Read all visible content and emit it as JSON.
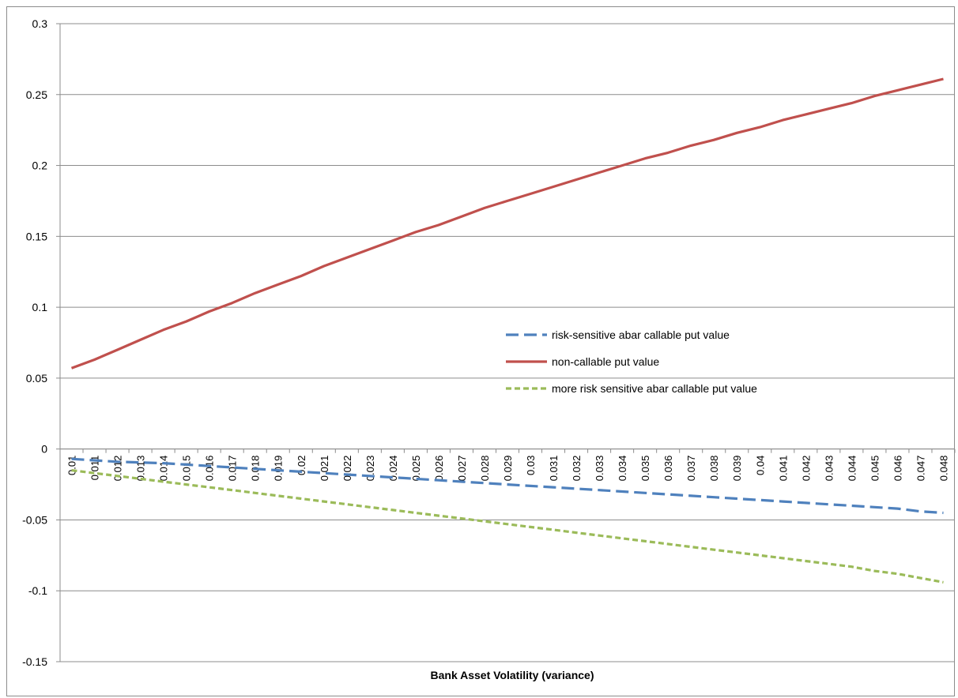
{
  "chart_data": {
    "type": "line",
    "title": "",
    "xlabel": "Bank Asset Volatility (variance)",
    "ylabel": "",
    "ylim": [
      -0.15,
      0.3
    ],
    "yticks": [
      0.3,
      0.25,
      0.2,
      0.15,
      0.1,
      0.05,
      0,
      -0.05,
      -0.1,
      -0.15
    ],
    "ytick_labels": [
      "0.3",
      "0.25",
      "0.2",
      "0.15",
      "0.1",
      "0.05",
      "0",
      "-0.05",
      "-0.1",
      "-0.15"
    ],
    "grid": "horizontal",
    "legend_position": "center-right",
    "categories": [
      "0.01",
      "0.011",
      "0.012",
      "0.013",
      "0.014",
      "0.015",
      "0.016",
      "0.017",
      "0.018",
      "0.019",
      "0.02",
      "0.021",
      "0.022",
      "0.023",
      "0.024",
      "0.025",
      "0.026",
      "0.027",
      "0.028",
      "0.029",
      "0.03",
      "0.031",
      "0.032",
      "0.033",
      "0.034",
      "0.035",
      "0.036",
      "0.037",
      "0.038",
      "0.039",
      "0.04",
      "0.041",
      "0.042",
      "0.043",
      "0.044",
      "0.045",
      "0.046",
      "0.047",
      "0.048"
    ],
    "series": [
      {
        "name": "risk-sensitive abar callable put value",
        "color": "#4f81bd",
        "dash": "long-dash",
        "values": [
          -0.007,
          -0.008,
          -0.009,
          -0.0095,
          -0.01,
          -0.011,
          -0.012,
          -0.013,
          -0.014,
          -0.015,
          -0.016,
          -0.017,
          -0.018,
          -0.019,
          -0.02,
          -0.021,
          -0.022,
          -0.023,
          -0.024,
          -0.025,
          -0.026,
          -0.027,
          -0.028,
          -0.029,
          -0.03,
          -0.031,
          -0.032,
          -0.033,
          -0.034,
          -0.035,
          -0.036,
          -0.037,
          -0.038,
          -0.039,
          -0.04,
          -0.041,
          -0.042,
          -0.044,
          -0.045
        ]
      },
      {
        "name": "non-callable put value",
        "color": "#c0504d",
        "dash": "solid",
        "values": [
          0.057,
          0.063,
          0.07,
          0.077,
          0.084,
          0.09,
          0.097,
          0.103,
          0.11,
          0.116,
          0.122,
          0.129,
          0.135,
          0.141,
          0.147,
          0.153,
          0.158,
          0.164,
          0.17,
          0.175,
          0.18,
          0.185,
          0.19,
          0.195,
          0.2,
          0.205,
          0.209,
          0.214,
          0.218,
          0.223,
          0.227,
          0.232,
          0.236,
          0.24,
          0.244,
          0.249,
          0.253,
          0.257,
          0.261
        ]
      },
      {
        "name": "more risk sensitive abar callable put value",
        "color": "#9bbb59",
        "dash": "short-dash",
        "values": [
          -0.015,
          -0.017,
          -0.019,
          -0.021,
          -0.023,
          -0.025,
          -0.027,
          -0.029,
          -0.031,
          -0.033,
          -0.035,
          -0.037,
          -0.039,
          -0.041,
          -0.043,
          -0.045,
          -0.047,
          -0.049,
          -0.051,
          -0.053,
          -0.055,
          -0.057,
          -0.059,
          -0.061,
          -0.063,
          -0.065,
          -0.067,
          -0.069,
          -0.071,
          -0.073,
          -0.075,
          -0.077,
          -0.079,
          -0.081,
          -0.083,
          -0.086,
          -0.088,
          -0.091,
          -0.094
        ]
      }
    ]
  }
}
